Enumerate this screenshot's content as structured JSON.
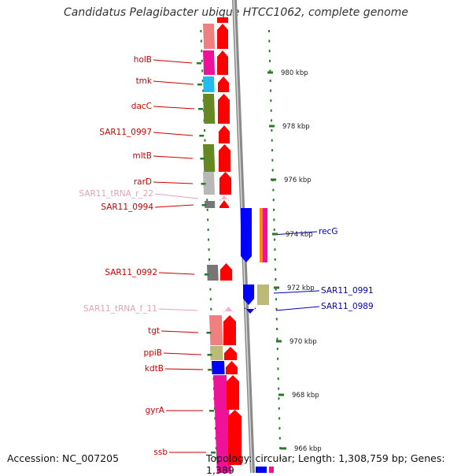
{
  "title": "Candidatus Pelagibacter ubique HTCC1062, complete genome",
  "footer": {
    "accession": "Accession: NC_007205",
    "summary": "Topology: circular; Length: 1,308,759 bp; Genes: 1,389"
  },
  "colors": {
    "label_forward": "#cc0000",
    "label_reverse": "#0000bb",
    "label_trna": "#e7a0b8",
    "tick": "#2a7a2a",
    "axis": "#8a8a8a",
    "arrow_forward": "#ff0000",
    "arrow_reverse": "#0000ff"
  },
  "scale": {
    "ticks": [
      {
        "label": "980 kbp"
      },
      {
        "label": "978 kbp"
      },
      {
        "label": "976 kbp"
      },
      {
        "label": "974 kbp"
      },
      {
        "label": "972 kbp"
      },
      {
        "label": "970 kbp"
      },
      {
        "label": "968 kbp"
      },
      {
        "label": "966 kbp"
      }
    ]
  },
  "forward_genes": [
    {
      "label": "holB"
    },
    {
      "label": "tmk"
    },
    {
      "label": "dacC"
    },
    {
      "label": "SAR11_0997"
    },
    {
      "label": "mltB"
    },
    {
      "label": "rarD"
    },
    {
      "label": "SAR11_tRNA_r_22"
    },
    {
      "label": "SAR11_0994"
    },
    {
      "label": "SAR11_0992"
    },
    {
      "label": "SAR11_tRNA_f_11"
    },
    {
      "label": "tgt"
    },
    {
      "label": "ppiB"
    },
    {
      "label": "kdtB"
    },
    {
      "label": "gyrA"
    },
    {
      "label": "ssb"
    }
  ],
  "reverse_genes": [
    {
      "label": "recG"
    },
    {
      "label": "SAR11_0991"
    },
    {
      "label": "SAR11_0989"
    }
  ]
}
